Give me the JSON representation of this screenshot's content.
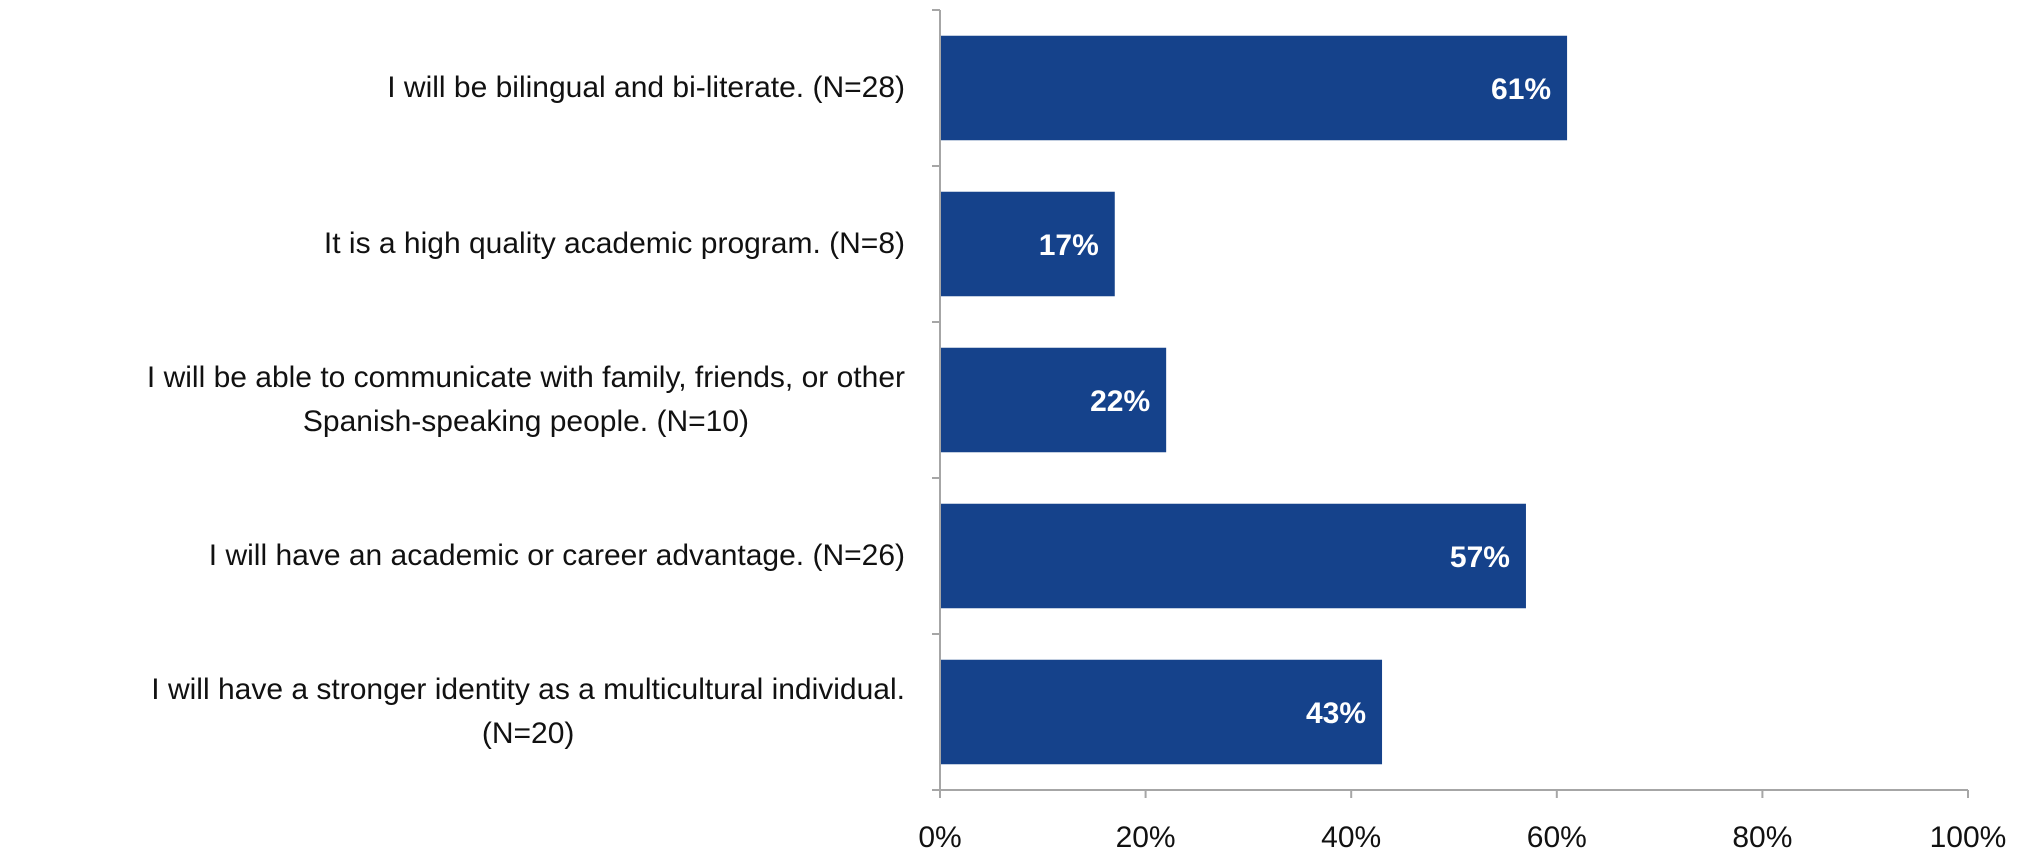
{
  "chart_data": {
    "type": "bar",
    "orientation": "horizontal",
    "categories": [
      [
        "I will be bilingual and bi-literate. (N=28)"
      ],
      [
        "It is a high quality academic program. (N=8)"
      ],
      [
        "I will be able to communicate with family, friends, or other",
        "Spanish-speaking people. (N=10)"
      ],
      [
        "I will have an academic or career advantage. (N=26)"
      ],
      [
        "I will have a stronger identity as a multicultural individual.",
        "(N=20)"
      ]
    ],
    "values": [
      61,
      17,
      22,
      57,
      43
    ],
    "data_labels": [
      "61%",
      "17%",
      "22%",
      "57%",
      "43%"
    ],
    "xlim": [
      0,
      100
    ],
    "xticks": [
      0,
      20,
      40,
      60,
      80,
      100
    ],
    "xtick_labels": [
      "0%",
      "20%",
      "40%",
      "60%",
      "80%",
      "100%"
    ],
    "bar_color": "#15428B",
    "data_label_color": "#FFFFFF",
    "axis_color": "#A6A6A6",
    "grid": false,
    "legend": "none"
  }
}
